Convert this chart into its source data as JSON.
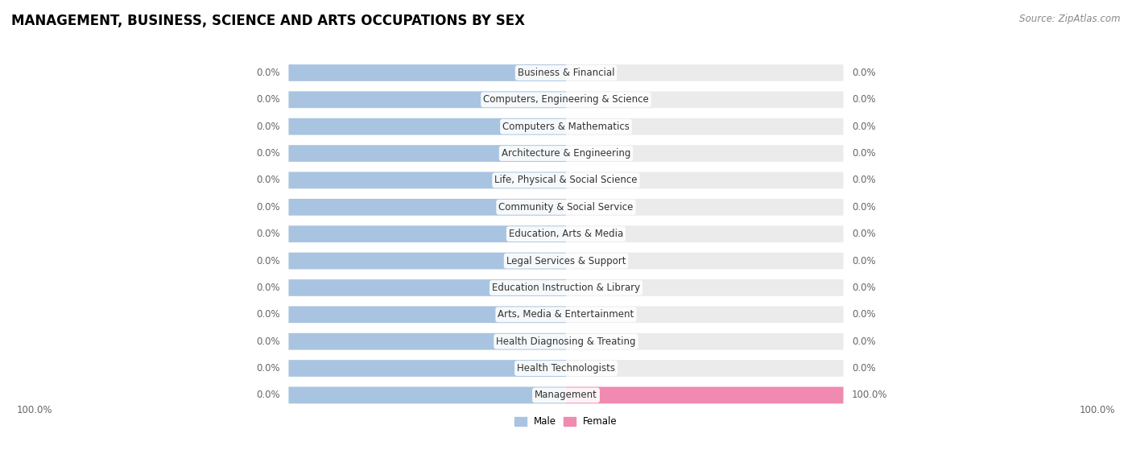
{
  "title": "MANAGEMENT, BUSINESS, SCIENCE AND ARTS OCCUPATIONS BY SEX",
  "source": "Source: ZipAtlas.com",
  "categories": [
    "Business & Financial",
    "Computers, Engineering & Science",
    "Computers & Mathematics",
    "Architecture & Engineering",
    "Life, Physical & Social Science",
    "Community & Social Service",
    "Education, Arts & Media",
    "Legal Services & Support",
    "Education Instruction & Library",
    "Arts, Media & Entertainment",
    "Health Diagnosing & Treating",
    "Health Technologists",
    "Management"
  ],
  "male_values": [
    0.0,
    0.0,
    0.0,
    0.0,
    0.0,
    0.0,
    0.0,
    0.0,
    0.0,
    0.0,
    0.0,
    0.0,
    0.0
  ],
  "female_values": [
    0.0,
    0.0,
    0.0,
    0.0,
    0.0,
    0.0,
    0.0,
    0.0,
    0.0,
    0.0,
    0.0,
    0.0,
    100.0
  ],
  "male_color": "#a8c4e0",
  "female_color": "#f08ab0",
  "background_color": "#ffffff",
  "row_bg_color": "#ebebeb",
  "row_bg_light": "#f5f5f5",
  "title_fontsize": 12,
  "label_fontsize": 8.5,
  "tick_fontsize": 8.5,
  "source_fontsize": 8.5,
  "value_color": "#666666",
  "label_color": "#333333"
}
